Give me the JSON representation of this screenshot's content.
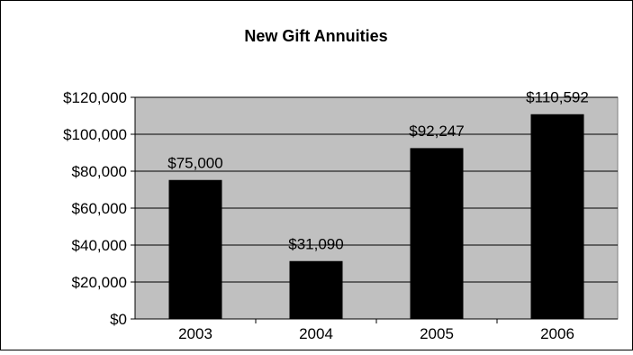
{
  "chart_data": {
    "type": "bar",
    "title": "New Gift Annuities",
    "categories": [
      "2003",
      "2004",
      "2005",
      "2006"
    ],
    "values": [
      75000,
      31090,
      92247,
      110592
    ],
    "data_labels": [
      "$75,000",
      "$31,090",
      "$92,247",
      "$110,592"
    ],
    "yticks": [
      0,
      20000,
      40000,
      60000,
      80000,
      100000,
      120000
    ],
    "ytick_labels": [
      "$0",
      "$20,000",
      "$40,000",
      "$60,000",
      "$80,000",
      "$100,000",
      "$120,000"
    ],
    "xlabel": "",
    "ylabel": "",
    "ylim": [
      0,
      120000
    ],
    "grid": true,
    "legend": "none",
    "colors": {
      "bar": "#000000",
      "plot_background": "#c0c0c0",
      "gridline": "#000000",
      "chart_background": "#ffffff",
      "border": "#000000"
    }
  }
}
